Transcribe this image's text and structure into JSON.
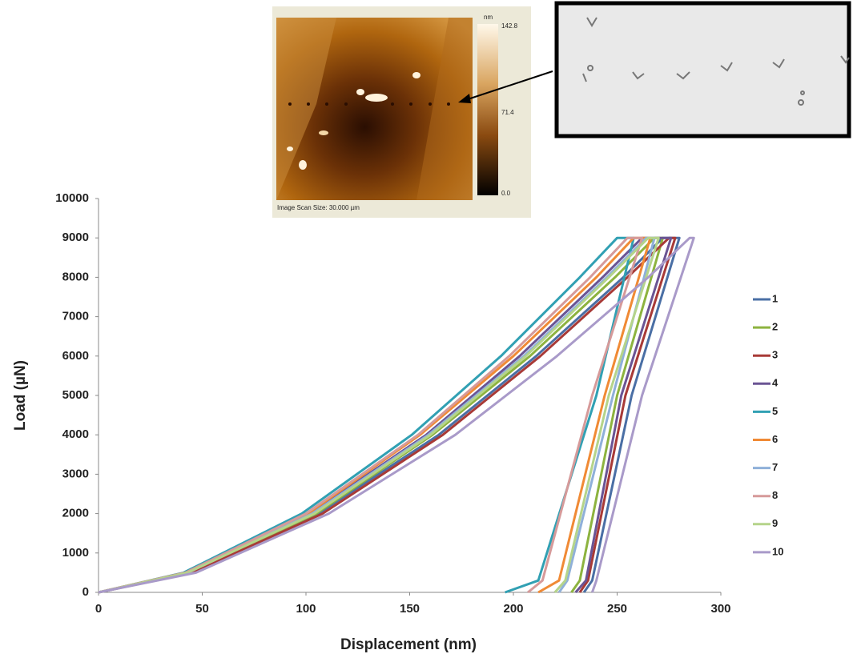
{
  "chart_data": {
    "type": "line",
    "x_label": "Displacement (nm)",
    "y_label": "Load (µN)",
    "xlim": [
      0,
      300
    ],
    "xticks": [
      0,
      50,
      100,
      150,
      200,
      250,
      300
    ],
    "ylim": [
      0,
      10000
    ],
    "yticks": [
      0,
      1000,
      2000,
      3000,
      4000,
      5000,
      6000,
      7000,
      8000,
      9000,
      10000
    ],
    "grid": false,
    "legend": "right",
    "series": [
      {
        "name": "1",
        "color": "#4a6fa5",
        "x": [
          0,
          45,
          106,
          164,
          211,
          253,
          272,
          280,
          257,
          238,
          234
        ],
        "values": [
          0,
          500,
          2000,
          4000,
          6000,
          8000,
          9000,
          9000,
          5000,
          300,
          0
        ]
      },
      {
        "name": "2",
        "color": "#8db33f",
        "x": [
          0,
          44,
          105,
          161,
          208,
          249,
          268,
          272,
          250,
          232,
          228
        ],
        "values": [
          0,
          500,
          2000,
          4000,
          6000,
          8000,
          9000,
          9000,
          5000,
          300,
          0
        ]
      },
      {
        "name": "3",
        "color": "#a83a37",
        "x": [
          0,
          45,
          108,
          166,
          213,
          255,
          275,
          278,
          254,
          236,
          232
        ],
        "values": [
          0,
          500,
          2000,
          4000,
          6000,
          8000,
          9000,
          9000,
          5000,
          300,
          0
        ]
      },
      {
        "name": "4",
        "color": "#6a5494",
        "x": [
          0,
          43,
          102,
          158,
          203,
          243,
          262,
          276,
          252,
          235,
          230
        ],
        "values": [
          0,
          500,
          2000,
          4000,
          6000,
          8000,
          9000,
          9000,
          5000,
          300,
          0
        ]
      },
      {
        "name": "5",
        "color": "#31a0b3",
        "x": [
          0,
          41,
          98,
          151,
          194,
          232,
          250,
          258,
          240,
          212,
          196
        ],
        "values": [
          0,
          500,
          2000,
          4000,
          6000,
          8000,
          9000,
          9000,
          5000,
          300,
          0
        ]
      },
      {
        "name": "6",
        "color": "#f08a35",
        "x": [
          0,
          42,
          101,
          155,
          200,
          240,
          258,
          266,
          244,
          222,
          212
        ],
        "values": [
          0,
          500,
          2000,
          4000,
          6000,
          8000,
          9000,
          9000,
          5000,
          300,
          0
        ]
      },
      {
        "name": "7",
        "color": "#8fb0d9",
        "x": [
          0,
          43,
          103,
          159,
          205,
          245,
          264,
          268,
          248,
          226,
          222
        ],
        "values": [
          0,
          500,
          2000,
          4000,
          6000,
          8000,
          9000,
          9000,
          5000,
          300,
          0
        ]
      },
      {
        "name": "8",
        "color": "#d69a9a",
        "x": [
          0,
          42,
          100,
          154,
          198,
          237,
          255,
          262,
          238,
          214,
          207
        ],
        "values": [
          0,
          500,
          2000,
          4000,
          6000,
          8000,
          9000,
          9000,
          5000,
          300,
          0
        ]
      },
      {
        "name": "9",
        "color": "#b5d48a",
        "x": [
          0,
          43,
          104,
          160,
          206,
          246,
          265,
          270,
          246,
          225,
          220
        ],
        "values": [
          0,
          500,
          2000,
          4000,
          6000,
          8000,
          9000,
          9000,
          5000,
          300,
          0
        ]
      },
      {
        "name": "10",
        "color": "#a99ac9",
        "x": [
          0,
          47,
          111,
          172,
          221,
          265,
          285,
          287,
          262,
          240,
          238
        ],
        "values": [
          0,
          500,
          2000,
          4000,
          6000,
          8000,
          9000,
          9000,
          5000,
          300,
          0
        ]
      }
    ]
  },
  "inset": {
    "unit": "nm",
    "scale_top": "142.8",
    "scale_mid": "71.4",
    "scale_bottom": "0.0",
    "caption": "Image Scan Size:  30.000 µm"
  }
}
